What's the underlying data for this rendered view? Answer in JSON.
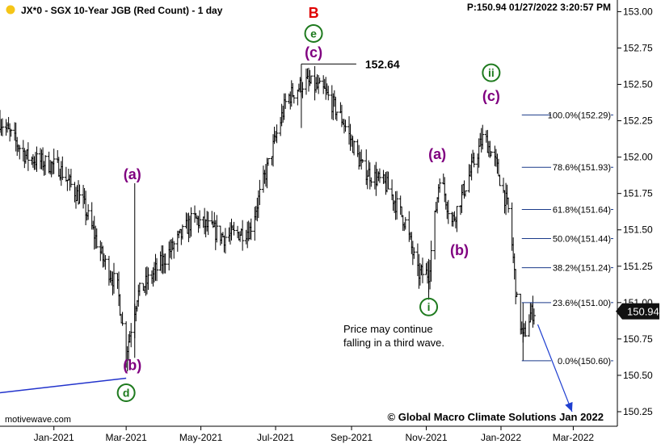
{
  "header": {
    "title": "JX*0 - SGX 10-Year JGB (Red Count) - 1 day",
    "info": "P:150.94  01/27/2022 3:20:57 PM",
    "status_color": "#f5c518"
  },
  "footer": {
    "left": "motivewave.com",
    "right": "© Global Macro Climate Solutions Jan 2022"
  },
  "price_tag": "150.94",
  "chart_data": {
    "type": "ohlc",
    "y_ticks": [
      150.25,
      150.5,
      150.75,
      151.0,
      151.25,
      151.5,
      151.75,
      152.0,
      152.25,
      152.5,
      152.75,
      153.0
    ],
    "ylim": [
      150.15,
      153.08
    ],
    "x_ticks": [
      {
        "label": "Jan-2021",
        "date": "2021-01-01"
      },
      {
        "label": "Mar-2021",
        "date": "2021-03-01"
      },
      {
        "label": "May-2021",
        "date": "2021-05-01"
      },
      {
        "label": "Jul-2021",
        "date": "2021-07-01"
      },
      {
        "label": "Sep-2021",
        "date": "2021-09-01"
      },
      {
        "label": "Nov-2021",
        "date": "2021-11-01"
      },
      {
        "label": "Jan-2022",
        "date": "2022-01-01"
      },
      {
        "label": "Mar-2022",
        "date": "2022-03-01"
      }
    ],
    "xlim": [
      "2020-11-18",
      "2022-04-06"
    ],
    "price_path": [
      [
        "2020-11-18",
        152.25
      ],
      [
        "2020-12-10",
        152.0
      ],
      [
        "2021-01-05",
        151.93
      ],
      [
        "2021-01-25",
        151.68
      ],
      [
        "2021-02-10",
        151.3
      ],
      [
        "2021-02-22",
        151.1
      ],
      [
        "2021-03-01",
        150.65
      ],
      [
        "2021-03-10",
        151.05
      ],
      [
        "2021-04-01",
        151.3
      ],
      [
        "2021-04-25",
        151.58
      ],
      [
        "2021-05-20",
        151.45
      ],
      [
        "2021-06-10",
        151.5
      ],
      [
        "2021-06-25",
        151.95
      ],
      [
        "2021-07-10",
        152.4
      ],
      [
        "2021-07-25",
        152.52
      ],
      [
        "2021-08-10",
        152.45
      ],
      [
        "2021-08-25",
        152.25
      ],
      [
        "2021-09-10",
        151.92
      ],
      [
        "2021-09-30",
        151.8
      ],
      [
        "2021-10-15",
        151.55
      ],
      [
        "2021-10-25",
        151.2
      ],
      [
        "2021-11-03",
        151.2
      ],
      [
        "2021-11-12",
        151.88
      ],
      [
        "2021-11-22",
        151.55
      ],
      [
        "2021-12-05",
        151.85
      ],
      [
        "2021-12-18",
        152.15
      ],
      [
        "2021-12-28",
        151.95
      ],
      [
        "2022-01-08",
        151.6
      ],
      [
        "2022-01-14",
        151.0
      ],
      [
        "2022-01-19",
        150.75
      ],
      [
        "2022-01-25",
        150.92
      ],
      [
        "2022-01-28",
        150.94
      ]
    ],
    "annotations": [
      {
        "text": "B",
        "date": "2021-08-01",
        "price": 152.99,
        "color": "#e00000"
      },
      {
        "text": "e",
        "date": "2021-08-01",
        "price": 152.85,
        "color": "#1e7a1e",
        "circled": true
      },
      {
        "text": "(c)",
        "date": "2021-08-01",
        "price": 152.72,
        "color": "#800080"
      },
      {
        "text": "(a)",
        "date": "2021-03-06",
        "price": 151.88,
        "color": "#800080"
      },
      {
        "text": "(b)",
        "date": "2021-03-06",
        "price": 150.57,
        "color": "#800080"
      },
      {
        "text": "d",
        "date": "2021-03-01",
        "price": 150.38,
        "color": "#1e7a1e",
        "circled": true
      },
      {
        "text": "ii",
        "date": "2021-12-24",
        "price": 152.58,
        "color": "#1e7a1e",
        "circled": true
      },
      {
        "text": "(c)",
        "date": "2021-12-24",
        "price": 152.42,
        "color": "#800080"
      },
      {
        "text": "(a)",
        "date": "2021-11-10",
        "price": 152.02,
        "color": "#800080"
      },
      {
        "text": "(b)",
        "date": "2021-11-28",
        "price": 151.36,
        "color": "#800080"
      },
      {
        "text": "i",
        "date": "2021-11-03",
        "price": 150.97,
        "color": "#1e7a1e",
        "circled": true
      }
    ],
    "high_label": {
      "text": "152.64",
      "date": "2021-07-22",
      "price": 152.64
    },
    "note": [
      "Price may continue",
      "falling in a third wave."
    ],
    "fib_levels": [
      {
        "label": "100.0%(152.29)",
        "value": 152.29
      },
      {
        "label": "78.6%(151.93)",
        "value": 151.93
      },
      {
        "label": "61.8%(151.64)",
        "value": 151.64
      },
      {
        "label": "50.0%(151.44)",
        "value": 151.44
      },
      {
        "label": "38.2%(151.24)",
        "value": 151.24
      },
      {
        "label": "23.6%(151.00)",
        "value": 151.0
      },
      {
        "label": "0.0%(150.60)",
        "value": 150.6
      }
    ],
    "fib_date_range": [
      "2022-01-18",
      "2022-04-06"
    ],
    "arrow": {
      "from": [
        "2022-01-31",
        150.85
      ],
      "to": [
        "2022-02-28",
        150.25
      ]
    },
    "trendline": {
      "from": [
        "2020-11-18",
        150.38
      ],
      "to": [
        "2021-03-01",
        150.48
      ]
    },
    "colors": {
      "bars": "#000000",
      "label_purple": "#800080",
      "label_green": "#1e7a1e",
      "label_red": "#e00000",
      "fib_line": "#1a3a8a",
      "arrow": "#1f3fd0",
      "trendline": "#2233cc"
    }
  }
}
